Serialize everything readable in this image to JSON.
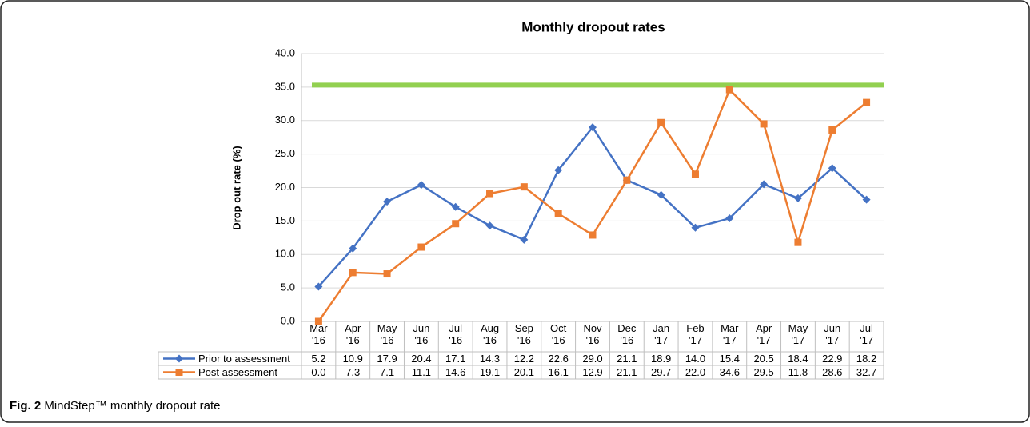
{
  "chart_data": {
    "type": "line",
    "title": "Monthly dropout rates",
    "y_label": "Drop out rate (%)",
    "categories": [
      "Mar '16",
      "Apr '16",
      "May '16",
      "Jun '16",
      "Jul '16",
      "Aug '16",
      "Sep '16",
      "Oct '16",
      "Nov '16",
      "Dec '16",
      "Jan '17",
      "Feb '17",
      "Mar '17",
      "Apr '17",
      "May '17",
      "Jun '17",
      "Jul '17"
    ],
    "series": [
      {
        "name": "Prior to assessment",
        "color": "#4472c4",
        "marker": "diamond",
        "values": [
          5.2,
          10.9,
          17.9,
          20.4,
          17.1,
          14.3,
          12.2,
          22.6,
          29.0,
          21.1,
          18.9,
          14.0,
          15.4,
          20.5,
          18.4,
          22.9,
          18.2
        ],
        "value_labels": [
          "5.2",
          "10.9",
          "17.9",
          "20.4",
          "17.1",
          "14.3",
          "12.2",
          "22.6",
          "29.0",
          "21.1",
          "18.9",
          "14.0",
          "15.4",
          "20.5",
          "18.4",
          "22.9",
          "18.2"
        ]
      },
      {
        "name": "Post assessment",
        "color": "#ed7d31",
        "marker": "square",
        "values": [
          0.0,
          7.3,
          7.1,
          11.1,
          14.6,
          19.1,
          20.1,
          16.1,
          12.9,
          21.1,
          29.7,
          22.0,
          34.6,
          29.5,
          11.8,
          28.6,
          32.7
        ],
        "value_labels": [
          "0.0",
          "7.3",
          "7.1",
          "11.1",
          "14.6",
          "19.1",
          "20.1",
          "16.1",
          "12.9",
          "21.1",
          "29.7",
          "22.0",
          "34.6",
          "29.5",
          "11.8",
          "28.6",
          "32.7"
        ]
      }
    ],
    "reference_line": {
      "value": 35.3,
      "color": "#92d050"
    },
    "ylim": [
      0,
      40
    ],
    "yticks": [
      {
        "value": 0,
        "label": "0.0"
      },
      {
        "value": 5,
        "label": "5.0"
      },
      {
        "value": 10,
        "label": "10.0"
      },
      {
        "value": 15,
        "label": "15.0"
      },
      {
        "value": 20,
        "label": "20.0"
      },
      {
        "value": 25,
        "label": "25.0"
      },
      {
        "value": 30,
        "label": "30.0"
      },
      {
        "value": 35,
        "label": "35.0"
      },
      {
        "value": 40,
        "label": "40.0"
      }
    ],
    "grid": true
  },
  "caption": {
    "label": "Fig. 2",
    "text": "MindStep™ monthly dropout rate"
  }
}
